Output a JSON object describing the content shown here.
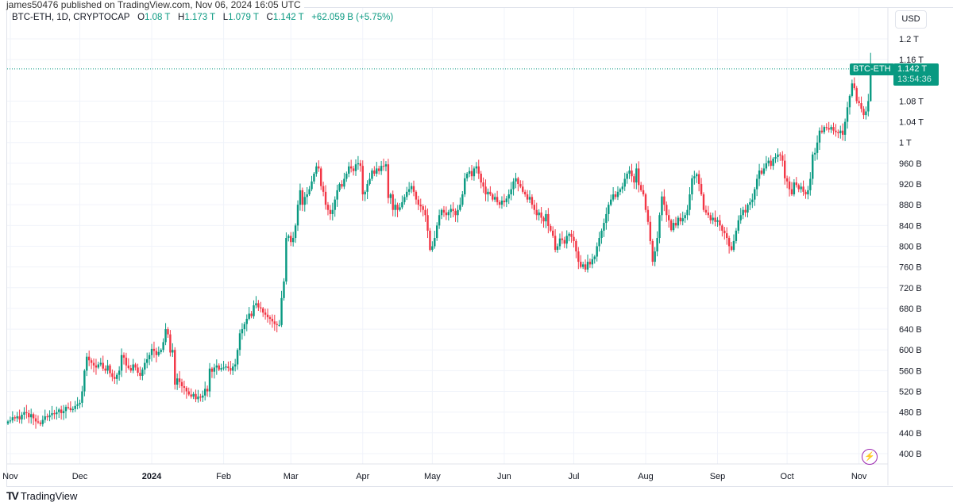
{
  "publisher": "james50476 published on TradingView.com, Nov 06, 2024 16:05 UTC",
  "legend": {
    "symbol": "BTC-ETH, 1D, CRYPTOCAP",
    "o_label": "O",
    "o": "1.08 T",
    "h_label": "H",
    "h": "1.173 T",
    "l_label": "L",
    "l": "1.079 T",
    "c_label": "C",
    "c": "1.142 T",
    "change": "+62.059 B (+5.75%)"
  },
  "currency_button": "USD",
  "last_price": {
    "symbol_tag": "BTC-ETH",
    "price": "1.142 T",
    "countdown": "13:54:36"
  },
  "brand": "TradingView",
  "colors": {
    "up": "#089981",
    "down": "#f23645",
    "grid": "#f0f3fa",
    "accent_icon": "#9c27b0"
  },
  "chart_data": {
    "type": "candlestick",
    "interval": "1D",
    "start_date": "2023-10-31",
    "unit": "B USD",
    "ylim": [
      380,
      1220
    ],
    "grid": true,
    "y_ticks": [
      {
        "v": 1200,
        "label": "1.2 T"
      },
      {
        "v": 1160,
        "label": "1.16 T"
      },
      {
        "v": 1080,
        "label": "1.08 T"
      },
      {
        "v": 1040,
        "label": "1.04 T"
      },
      {
        "v": 1000,
        "label": "1 T"
      },
      {
        "v": 960,
        "label": "960 B"
      },
      {
        "v": 920,
        "label": "920 B"
      },
      {
        "v": 880,
        "label": "880 B"
      },
      {
        "v": 840,
        "label": "840 B"
      },
      {
        "v": 800,
        "label": "800 B"
      },
      {
        "v": 760,
        "label": "760 B"
      },
      {
        "v": 720,
        "label": "720 B"
      },
      {
        "v": 680,
        "label": "680 B"
      },
      {
        "v": 640,
        "label": "640 B"
      },
      {
        "v": 600,
        "label": "600 B"
      },
      {
        "v": 560,
        "label": "560 B"
      },
      {
        "v": 520,
        "label": "520 B"
      },
      {
        "v": 480,
        "label": "480 B"
      },
      {
        "v": 440,
        "label": "440 B"
      },
      {
        "v": 400,
        "label": "400 B"
      }
    ],
    "x_ticks": [
      {
        "date": "2023-11-01",
        "label": "Nov"
      },
      {
        "date": "2023-12-01",
        "label": "Dec"
      },
      {
        "date": "2024-01-01",
        "label": "2024",
        "bold": true
      },
      {
        "date": "2024-02-01",
        "label": "Feb"
      },
      {
        "date": "2024-03-01",
        "label": "Mar"
      },
      {
        "date": "2024-04-01",
        "label": "Apr"
      },
      {
        "date": "2024-05-01",
        "label": "May"
      },
      {
        "date": "2024-06-01",
        "label": "Jun"
      },
      {
        "date": "2024-07-01",
        "label": "Jul"
      },
      {
        "date": "2024-08-01",
        "label": "Aug"
      },
      {
        "date": "2024-09-01",
        "label": "Sep"
      },
      {
        "date": "2024-10-01",
        "label": "Oct"
      },
      {
        "date": "2024-11-01",
        "label": "Nov"
      }
    ],
    "last_candle": {
      "open": 1080,
      "high": 1173,
      "low": 1079,
      "close": 1142
    },
    "closes": [
      462,
      464,
      470,
      468,
      472,
      466,
      475,
      480,
      478,
      470,
      476,
      468,
      462,
      460,
      457,
      465,
      472,
      470,
      474,
      478,
      476,
      480,
      485,
      478,
      482,
      490,
      488,
      484,
      486,
      492,
      495,
      498,
      520,
      560,
      587,
      580,
      575,
      570,
      566,
      572,
      575,
      564,
      560,
      570,
      555,
      548,
      544,
      552,
      560,
      590,
      585,
      570,
      565,
      560,
      572,
      566,
      556,
      550,
      562,
      575,
      582,
      590,
      602,
      598,
      590,
      596,
      600,
      615,
      640,
      630,
      595,
      600,
      533,
      545,
      538,
      530,
      527,
      520,
      514,
      510,
      515,
      505,
      510,
      508,
      512,
      525,
      520,
      564,
      558,
      566,
      570,
      562,
      565,
      566,
      568,
      565,
      560,
      568,
      572,
      600,
      632,
      640,
      650,
      660,
      670,
      665,
      686,
      690,
      682,
      680,
      672,
      668,
      663,
      660,
      655,
      650,
      648,
      648,
      700,
      732,
      816,
      820,
      808,
      816,
      840,
      880,
      908,
      880,
      895,
      900,
      910,
      925,
      940,
      954,
      950,
      916,
      905,
      880,
      870,
      862,
      870,
      890,
      908,
      920,
      915,
      930,
      940,
      954,
      950,
      945,
      958,
      960,
      955,
      900,
      905,
      920,
      930,
      946,
      940,
      950,
      945,
      955,
      954,
      958,
      893,
      900,
      870,
      880,
      870,
      875,
      885,
      895,
      905,
      910,
      916,
      905,
      890,
      880,
      877,
      870,
      860,
      830,
      793,
      800,
      816,
      840,
      860,
      870,
      865,
      860,
      866,
      872,
      868,
      860,
      870,
      880,
      900,
      931,
      940,
      945,
      935,
      950,
      954,
      940,
      923,
      915,
      900,
      905,
      900,
      890,
      895,
      885,
      880,
      888,
      885,
      892,
      900,
      910,
      925,
      931,
      920,
      915,
      905,
      900,
      890,
      895,
      880,
      870,
      860,
      865,
      855,
      848,
      862,
      839,
      830,
      820,
      793,
      800,
      815,
      812,
      805,
      820,
      824,
      818,
      810,
      790,
      770,
      760,
      765,
      755,
      770,
      765,
      775,
      780,
      800,
      816,
      830,
      845,
      862,
      880,
      890,
      900,
      895,
      905,
      910,
      915,
      930,
      940,
      946,
      935,
      923,
      950,
      918,
      908,
      900,
      870,
      847,
      810,
      770,
      790,
      816,
      860,
      896,
      880,
      860,
      850,
      831,
      845,
      840,
      855,
      848,
      854,
      860,
      870,
      900,
      931,
      935,
      939,
      920,
      900,
      870,
      865,
      860,
      850,
      855,
      847,
      850,
      840,
      830,
      825,
      816,
      800,
      793,
      810,
      830,
      850,
      860,
      870,
      865,
      880,
      885,
      890,
      910,
      930,
      946,
      940,
      950,
      960,
      965,
      955,
      969,
      972,
      977,
      975,
      965,
      931,
      925,
      910,
      900,
      923,
      918,
      910,
      915,
      905,
      900,
      908,
      930,
      977,
      980,
      1000,
      1023,
      1020,
      1030,
      1028,
      1025,
      1030,
      1023,
      1020,
      1018,
      1023,
      1015,
      1040,
      1068,
      1090,
      1114,
      1105,
      1080,
      1076,
      1065,
      1053,
      1060,
      1080,
      1142
    ]
  }
}
